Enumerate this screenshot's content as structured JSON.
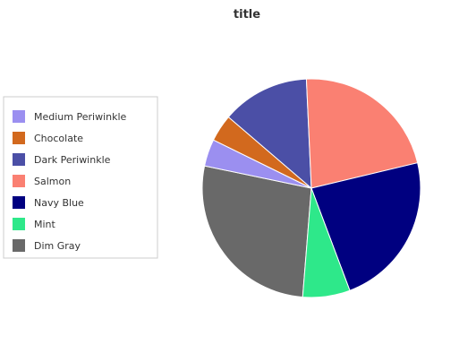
{
  "chart_data": {
    "type": "pie",
    "title": "title",
    "legend_position": "left",
    "categories": [
      "Medium Periwinkle",
      "Chocolate",
      "Dark Periwinkle",
      "Salmon",
      "Navy Blue",
      "Mint",
      "Dim Gray"
    ],
    "values": [
      4,
      4,
      13,
      22,
      23,
      7,
      27
    ],
    "colors": [
      "#9b8ff0",
      "#d2691e",
      "#4b4fa6",
      "#fa8072",
      "#000080",
      "#2ee88a",
      "#696969"
    ],
    "slice_order": [
      "Dim Gray",
      "Medium Periwinkle",
      "Chocolate",
      "Dark Periwinkle",
      "Salmon",
      "Navy Blue",
      "Mint"
    ]
  }
}
